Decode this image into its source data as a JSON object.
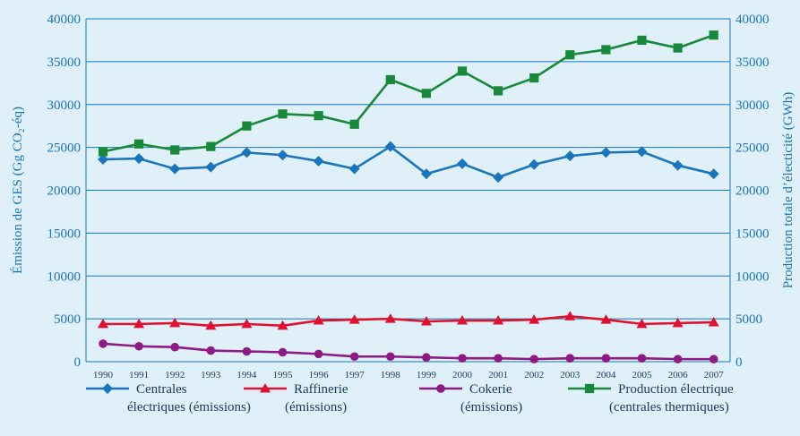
{
  "chart_data": {
    "type": "line",
    "categories": [
      "1990",
      "1991",
      "1992",
      "1993",
      "1994",
      "1995",
      "1996",
      "1997",
      "1998",
      "1999",
      "2000",
      "2001",
      "2002",
      "2003",
      "2004",
      "2005",
      "2006",
      "2007"
    ],
    "ylabel": "Émission de GES (Gg CO₂-éq)",
    "ylabel_right": "Production totale d’électicité (GWh)",
    "ylim": [
      0,
      40000
    ],
    "ylim_right": [
      0,
      40000
    ],
    "y_ticks": [
      "0",
      "5000",
      "10000",
      "15000",
      "20000",
      "25000",
      "30000",
      "35000",
      "40000"
    ],
    "grid": "horizontal",
    "legend_position": "bottom",
    "series": [
      {
        "name_lines": [
          "Centrales",
          "électriques (émissions)"
        ],
        "color": "#1b75bc",
        "marker": "diamond",
        "axis": "left",
        "values": [
          23600,
          23700,
          22500,
          22700,
          24400,
          24100,
          23400,
          22500,
          25100,
          21900,
          23100,
          21500,
          23000,
          24000,
          24400,
          24500,
          22900,
          21900
        ]
      },
      {
        "name_lines": [
          "Raffinerie",
          "(émissions)"
        ],
        "color": "#e0102f",
        "marker": "triangle",
        "axis": "left",
        "values": [
          4400,
          4400,
          4500,
          4200,
          4400,
          4200,
          4800,
          4900,
          5000,
          4700,
          4800,
          4800,
          4900,
          5300,
          4900,
          4400,
          4500,
          4600
        ]
      },
      {
        "name_lines": [
          "Cokerie",
          "(émissions)"
        ],
        "color": "#8e1a86",
        "marker": "circle",
        "axis": "left",
        "values": [
          2100,
          1800,
          1700,
          1300,
          1200,
          1100,
          900,
          600,
          600,
          500,
          400,
          400,
          300,
          400,
          400,
          400,
          300,
          300
        ]
      },
      {
        "name_lines": [
          "Production électrique",
          "(centrales thermiques)"
        ],
        "color": "#18893a",
        "marker": "square",
        "axis": "right",
        "values": [
          24500,
          25400,
          24700,
          25100,
          27500,
          28900,
          28700,
          27700,
          32900,
          31300,
          33900,
          31600,
          33100,
          35800,
          36400,
          37500,
          36600,
          38100
        ]
      }
    ]
  }
}
